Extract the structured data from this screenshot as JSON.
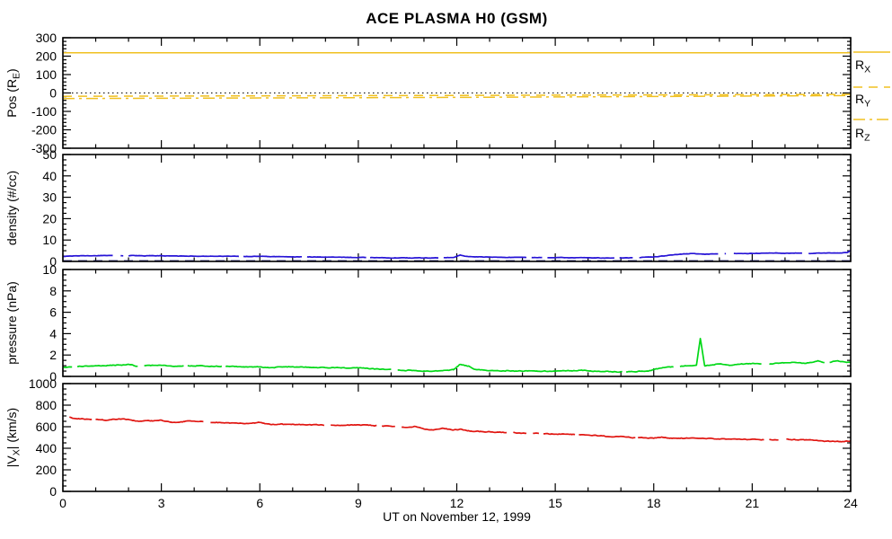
{
  "title": "ACE PLASMA H0 (GSM)",
  "xlabel": "UT on November 12, 1999",
  "colors": {
    "position_lines": "#F0C020",
    "density_trace": "#2613D6",
    "density_baseline": "#1A1A6E",
    "pressure_trace": "#00D816",
    "velocity_trace": "#E01510",
    "axis": "#000000",
    "background": "#FFFFFF"
  },
  "chart_data": {
    "type": "line",
    "title": "ACE PLASMA H0 (GSM)",
    "xlabel": "UT on November 12, 1999",
    "x_range": [
      0,
      24
    ],
    "x_major_ticks": [
      0,
      3,
      6,
      9,
      12,
      15,
      18,
      21,
      24
    ],
    "x_minor_step": 1,
    "grid": false,
    "legend_position": "right-of-top-panel",
    "panels": [
      {
        "id": "position",
        "ylabel": {
          "pre": "Pos (R",
          "sub": "E",
          "post": ")"
        },
        "ylim": [
          -300,
          300
        ],
        "yticks": [
          -300,
          -200,
          -100,
          0,
          100,
          200,
          300
        ],
        "y_minor_step": 20,
        "series": [
          {
            "name": "R_X",
            "color": "#F0C020",
            "style": "solid",
            "width": 1.5,
            "noisy": false,
            "points": [
              [
                0,
                218
              ],
              [
                24,
                218
              ]
            ]
          },
          {
            "name": "zero-reference",
            "color": "#000000",
            "style": "dot",
            "width": 1.1,
            "noisy": false,
            "points": [
              [
                0,
                0
              ],
              [
                24,
                0
              ]
            ]
          },
          {
            "name": "R_Y",
            "color": "#F0C020",
            "style": "dash",
            "width": 1.5,
            "noisy": false,
            "points": [
              [
                0,
                -18
              ],
              [
                12,
                -13
              ],
              [
                24,
                -8
              ]
            ]
          },
          {
            "name": "R_Z",
            "color": "#F0C020",
            "style": "dashdot",
            "width": 1.5,
            "noisy": false,
            "points": [
              [
                0,
                -30
              ],
              [
                12,
                -24
              ],
              [
                24,
                -14
              ]
            ]
          }
        ],
        "legend": [
          {
            "label": {
              "pre": "R",
              "sub": "X"
            },
            "style": "solid"
          },
          {
            "label": {
              "pre": "R",
              "sub": "Y"
            },
            "style": "dash"
          },
          {
            "label": {
              "pre": "R",
              "sub": "Z"
            },
            "style": "dashdot"
          }
        ]
      },
      {
        "id": "density",
        "ylabel": {
          "pre": "density (#/cc)"
        },
        "ylim": [
          0,
          50
        ],
        "yticks": [
          0,
          10,
          20,
          30,
          40,
          50
        ],
        "y_minor_step": 2.5,
        "series": [
          {
            "name": "density",
            "color": "#2613D6",
            "style": "solid",
            "width": 1.7,
            "noisy": true,
            "noise": 0.18,
            "points": [
              [
                0,
                2.4
              ],
              [
                0.5,
                2.6
              ],
              [
                1,
                2.7
              ],
              [
                1.5,
                2.8
              ],
              [
                2,
                2.7
              ],
              [
                2.5,
                2.6
              ],
              [
                3,
                2.7
              ],
              [
                3.5,
                2.5
              ],
              [
                4,
                2.5
              ],
              [
                4.5,
                2.4
              ],
              [
                5,
                2.4
              ],
              [
                5.5,
                2.3
              ],
              [
                6,
                2.4
              ],
              [
                6.5,
                2.2
              ],
              [
                7,
                2.2
              ],
              [
                7.5,
                2.1
              ],
              [
                8,
                2.0
              ],
              [
                8.5,
                1.9
              ],
              [
                9,
                1.9
              ],
              [
                9.5,
                1.8
              ],
              [
                10,
                1.7
              ],
              [
                10.5,
                1.6
              ],
              [
                11,
                1.6
              ],
              [
                11.5,
                1.7
              ],
              [
                11.9,
                1.9
              ],
              [
                12.1,
                3.0
              ],
              [
                12.3,
                2.3
              ],
              [
                12.7,
                2.1
              ],
              [
                13,
                2.0
              ],
              [
                13.5,
                1.9
              ],
              [
                14,
                1.9
              ],
              [
                14.5,
                1.8
              ],
              [
                15,
                1.8
              ],
              [
                15.5,
                1.7
              ],
              [
                16,
                1.7
              ],
              [
                16.5,
                1.6
              ],
              [
                17,
                1.6
              ],
              [
                17.5,
                1.8
              ],
              [
                18,
                2.1
              ],
              [
                18.4,
                2.7
              ],
              [
                18.8,
                3.4
              ],
              [
                19.2,
                3.7
              ],
              [
                19.6,
                3.4
              ],
              [
                20,
                3.6
              ],
              [
                20.4,
                3.8
              ],
              [
                20.8,
                3.6
              ],
              [
                21.2,
                3.8
              ],
              [
                21.6,
                4.0
              ],
              [
                22,
                3.8
              ],
              [
                22.4,
                3.9
              ],
              [
                22.8,
                3.7
              ],
              [
                23.2,
                4.0
              ],
              [
                23.6,
                3.9
              ],
              [
                23.9,
                4.1
              ],
              [
                24,
                5.2
              ]
            ]
          },
          {
            "name": "density-baseline",
            "color": "#1A1A6E",
            "style": "dash",
            "width": 1.2,
            "noisy": false,
            "points": [
              [
                0,
                0.35
              ],
              [
                24,
                0.35
              ]
            ]
          }
        ]
      },
      {
        "id": "pressure",
        "ylabel": {
          "pre": "pressure (nPa)"
        },
        "ylim": [
          0,
          10
        ],
        "yticks": [
          0,
          2,
          4,
          6,
          8,
          10
        ],
        "y_minor_step": 0.5,
        "series": [
          {
            "name": "pressure",
            "color": "#00D816",
            "style": "solid",
            "width": 1.7,
            "noisy": true,
            "noise": 0.07,
            "points": [
              [
                0,
                0.85
              ],
              [
                0.5,
                0.95
              ],
              [
                1,
                1.0
              ],
              [
                1.5,
                1.05
              ],
              [
                2,
                1.1
              ],
              [
                2.3,
                0.95
              ],
              [
                2.7,
                1.0
              ],
              [
                3,
                1.05
              ],
              [
                3.5,
                0.95
              ],
              [
                4,
                1.0
              ],
              [
                4.5,
                0.95
              ],
              [
                5,
                0.95
              ],
              [
                5.5,
                0.9
              ],
              [
                6,
                0.9
              ],
              [
                6.3,
                0.82
              ],
              [
                6.7,
                0.88
              ],
              [
                7,
                0.9
              ],
              [
                7.5,
                0.85
              ],
              [
                8,
                0.82
              ],
              [
                8.5,
                0.8
              ],
              [
                9,
                0.78
              ],
              [
                9.5,
                0.7
              ],
              [
                10,
                0.62
              ],
              [
                10.5,
                0.56
              ],
              [
                11,
                0.5
              ],
              [
                11.5,
                0.5
              ],
              [
                11.9,
                0.62
              ],
              [
                12.1,
                1.15
              ],
              [
                12.35,
                0.95
              ],
              [
                12.6,
                0.62
              ],
              [
                13,
                0.56
              ],
              [
                13.5,
                0.52
              ],
              [
                14,
                0.5
              ],
              [
                14.5,
                0.5
              ],
              [
                15,
                0.5
              ],
              [
                15.5,
                0.52
              ],
              [
                15.8,
                0.6
              ],
              [
                16.1,
                0.5
              ],
              [
                16.5,
                0.46
              ],
              [
                17,
                0.44
              ],
              [
                17.5,
                0.48
              ],
              [
                17.9,
                0.55
              ],
              [
                18.1,
                0.72
              ],
              [
                18.4,
                0.85
              ],
              [
                18.7,
                0.92
              ],
              [
                19,
                1.0
              ],
              [
                19.3,
                1.05
              ],
              [
                19.42,
                3.55
              ],
              [
                19.55,
                1.0
              ],
              [
                19.8,
                1.05
              ],
              [
                20,
                1.2
              ],
              [
                20.3,
                1.05
              ],
              [
                20.7,
                1.15
              ],
              [
                21,
                1.2
              ],
              [
                21.4,
                1.1
              ],
              [
                21.8,
                1.25
              ],
              [
                22.2,
                1.3
              ],
              [
                22.6,
                1.2
              ],
              [
                23,
                1.45
              ],
              [
                23.3,
                1.25
              ],
              [
                23.6,
                1.5
              ],
              [
                23.8,
                1.35
              ],
              [
                24,
                1.3
              ]
            ]
          }
        ]
      },
      {
        "id": "velocity",
        "ylabel": {
          "pre": "|V",
          "sub": "X",
          "post": "| (km/s)"
        },
        "ylim": [
          0,
          1000
        ],
        "yticks": [
          0,
          200,
          400,
          600,
          800,
          1000
        ],
        "y_minor_step": 50,
        "series": [
          {
            "name": "Vx",
            "color": "#E01510",
            "style": "solid",
            "width": 1.7,
            "noisy": true,
            "noise": 7,
            "points": [
              [
                0,
                700
              ],
              [
                0.3,
                682
              ],
              [
                0.6,
                672
              ],
              [
                1,
                668
              ],
              [
                1.3,
                660
              ],
              [
                1.7,
                672
              ],
              [
                2,
                668
              ],
              [
                2.3,
                648
              ],
              [
                2.7,
                655
              ],
              [
                3,
                660
              ],
              [
                3.3,
                640
              ],
              [
                3.7,
                648
              ],
              [
                4,
                652
              ],
              [
                4.5,
                640
              ],
              [
                5,
                636
              ],
              [
                5.5,
                630
              ],
              [
                6,
                638
              ],
              [
                6.3,
                622
              ],
              [
                6.7,
                625
              ],
              [
                7,
                622
              ],
              [
                7.5,
                618
              ],
              [
                8,
                615
              ],
              [
                8.5,
                613
              ],
              [
                9,
                616
              ],
              [
                9.5,
                611
              ],
              [
                10,
                604
              ],
              [
                10.3,
                592
              ],
              [
                10.7,
                600
              ],
              [
                11,
                578
              ],
              [
                11.3,
                572
              ],
              [
                11.6,
                586
              ],
              [
                11.9,
                568
              ],
              [
                12.1,
                576
              ],
              [
                12.4,
                560
              ],
              [
                12.7,
                556
              ],
              [
                13,
                552
              ],
              [
                13.5,
                546
              ],
              [
                14,
                541
              ],
              [
                14.5,
                537
              ],
              [
                15,
                533
              ],
              [
                15.5,
                528
              ],
              [
                16,
                522
              ],
              [
                16.5,
                513
              ],
              [
                17,
                506
              ],
              [
                17.5,
                498
              ],
              [
                18,
                492
              ],
              [
                18.25,
                506
              ],
              [
                18.5,
                490
              ],
              [
                19,
                494
              ],
              [
                19.5,
                491
              ],
              [
                20,
                486
              ],
              [
                20.5,
                483
              ],
              [
                21,
                481
              ],
              [
                21.5,
                478
              ],
              [
                22,
                481
              ],
              [
                22.5,
                477
              ],
              [
                23,
                472
              ],
              [
                23.3,
                464
              ],
              [
                23.6,
                461
              ],
              [
                24,
                468
              ]
            ]
          }
        ]
      }
    ]
  }
}
